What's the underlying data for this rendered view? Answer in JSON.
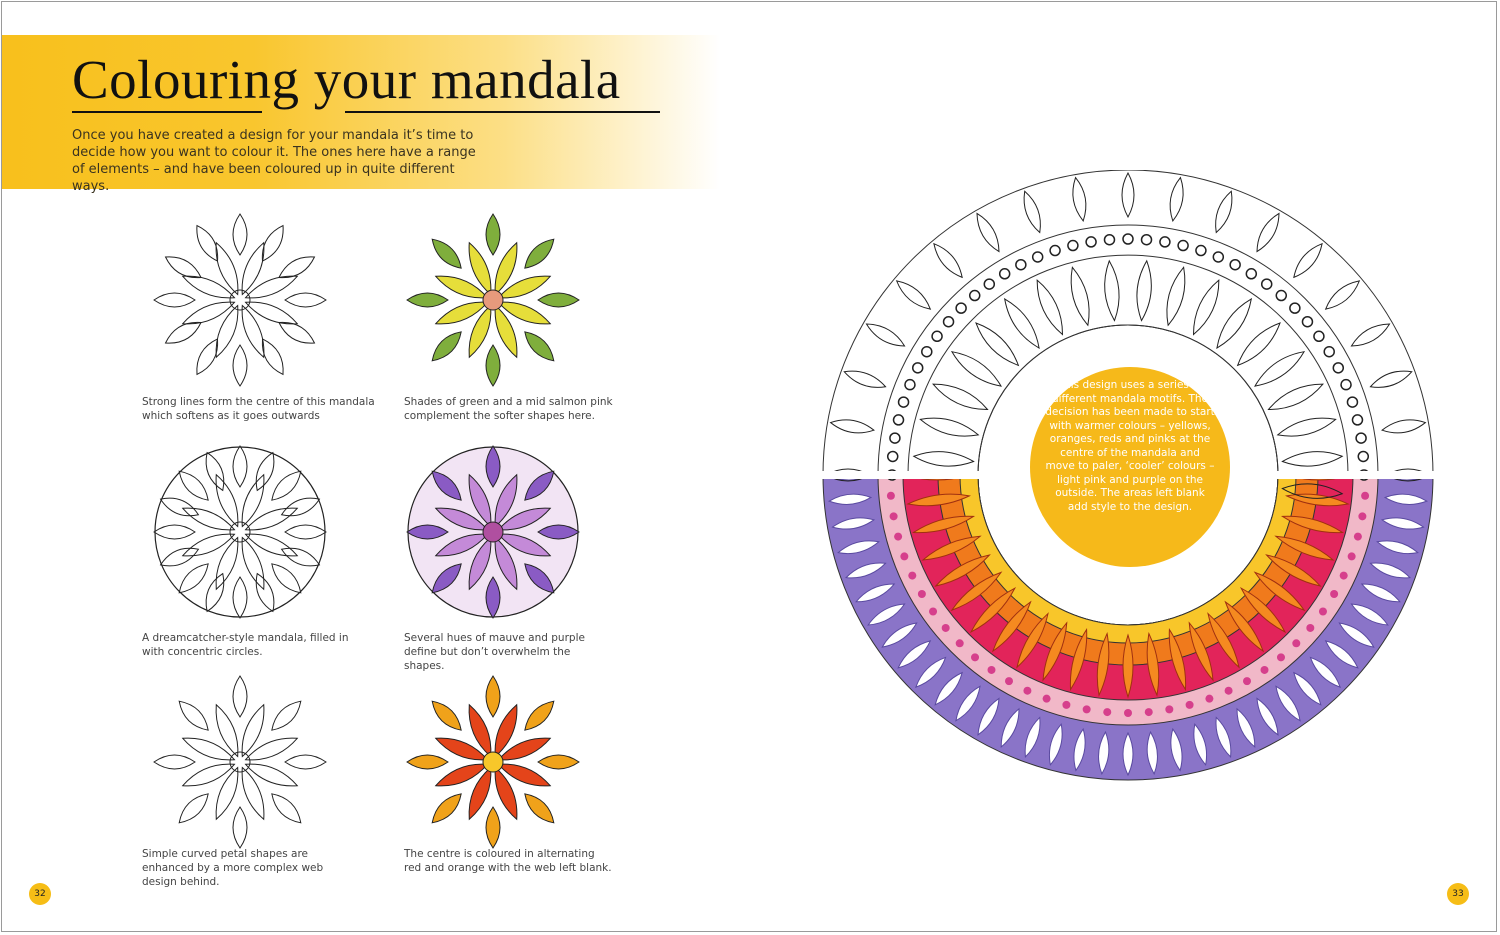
{
  "heading": {
    "title": "Colouring your mandala",
    "intro": "Once you have created a design for your mandala it’s time to decide how you want to colour it. The ones here have a range of elements – and have been coloured up in quite different ways."
  },
  "examples": [
    {
      "caption": "Strong lines form the centre of this mandala which softens as it goes outwards",
      "style": "line-art"
    },
    {
      "caption": "Shades of green and a mid salmon pink complement the softer shapes here.",
      "style": "green-salmon"
    },
    {
      "caption": "A dreamcatcher-style mandala, filled in with concentric circles.",
      "style": "line-art"
    },
    {
      "caption": "Several hues of mauve and purple define but don’t overwhelm the shapes.",
      "style": "purple"
    },
    {
      "caption": "Simple curved petal shapes are enhanced by a more complex web design behind.",
      "style": "line-art"
    },
    {
      "caption": "The centre is coloured in alternating red and orange with the web left blank.",
      "style": "red-orange"
    }
  ],
  "feature": {
    "callout": "This design uses a series of different mandala motifs. The decision has been made to start with warmer colours – yellows, oranges, reds and pinks at the centre of the mandala and move to paler, ‘cooler’ colours – light pink and purple on the outside. The areas left blank add style  to the design."
  },
  "page_numbers": {
    "left": "32",
    "right": "33"
  },
  "colors": {
    "accent": "#f6bd16",
    "text": "#444444"
  }
}
